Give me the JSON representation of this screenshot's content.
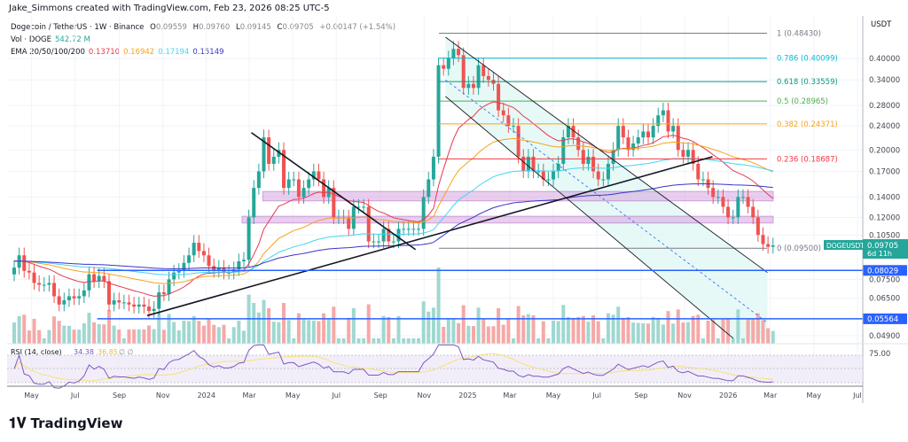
{
  "credit": "Jake_Simmons created with TradingView.com, Feb 23, 2026 08:25 UTC-5",
  "legend": {
    "symbol": "Dogecoin / TetherUS · 1W · Binance",
    "o": "O",
    "ov": "0.09559",
    "h": "H",
    "hv": "0.09760",
    "l": "L",
    "lv": "0.09145",
    "c": "C",
    "cv": "0.09705",
    "chg": "+0.00147 (+1.54%)",
    "vol_label": "Vol · DOGE",
    "vol_value": "542.72 M",
    "ema_label": "EMA 20/50/100/200",
    "ema_values": [
      "0.13710",
      "0.16942",
      "0.17194",
      "0.15149"
    ]
  },
  "ema_colors": [
    "#e53950",
    "#f7a21b",
    "#45d5f0",
    "#3a34c8"
  ],
  "axis": {
    "unit": "USDT",
    "price_ticks": [
      "0.40000",
      "0.34000",
      "0.28000",
      "0.24000",
      "0.20000",
      "0.17000",
      "0.14000",
      "0.12000",
      "0.10500",
      "0.07500",
      "0.06500",
      "0.04900"
    ],
    "time_ticks": [
      [
        "May",
        "2023-05-01"
      ],
      [
        "Jul",
        "2023-07-01"
      ],
      [
        "Sep",
        "2023-09-01"
      ],
      [
        "Nov",
        "2023-11-01"
      ],
      [
        "2024",
        "2024-01-01"
      ],
      [
        "Mar",
        "2024-03-01"
      ],
      [
        "May",
        "2024-05-01"
      ],
      [
        "Jul",
        "2024-07-01"
      ],
      [
        "Sep",
        "2024-09-01"
      ],
      [
        "Nov",
        "2024-11-01"
      ],
      [
        "2025",
        "2025-01-01"
      ],
      [
        "Mar",
        "2025-03-01"
      ],
      [
        "May",
        "2025-05-01"
      ],
      [
        "Jul",
        "2025-07-01"
      ],
      [
        "Sep",
        "2025-09-01"
      ],
      [
        "Nov",
        "2025-11-01"
      ],
      [
        "2026",
        "2026-01-01"
      ],
      [
        "Mar",
        "2026-03-01"
      ],
      [
        "May",
        "2026-05-01"
      ],
      [
        "Jul",
        "2026-07-01"
      ]
    ],
    "rsi_tick": "75.00"
  },
  "last_price": {
    "symbol": "DOGEUSDT",
    "price": "0.09705",
    "countdown": "6d 11h",
    "color": "#26a69a"
  },
  "h_lines": [
    {
      "price": 0.08029,
      "label": "0.08029"
    },
    {
      "price": 0.05564,
      "label": "0.05564"
    }
  ],
  "fib": [
    {
      "level": "1",
      "price": 0.4843,
      "text": "1 (0.48430)",
      "color": "#787b86"
    },
    {
      "level": "0.786",
      "price": 0.40099,
      "text": "0.786 (0.40099)",
      "color": "#00bcd4"
    },
    {
      "level": "0.618",
      "price": 0.33559,
      "text": "0.618 (0.33559)",
      "color": "#089981"
    },
    {
      "level": "0.5",
      "price": 0.28965,
      "text": "0.5 (0.28965)",
      "color": "#4caf50"
    },
    {
      "level": "0.382",
      "price": 0.24371,
      "text": "0.382 (0.24371)",
      "color": "#f7a21b"
    },
    {
      "level": "0.236",
      "price": 0.18687,
      "text": "0.236 (0.18687)",
      "color": "#f23645"
    },
    {
      "level": "0",
      "price": 0.095,
      "text": "0 (0.09500)",
      "color": "#787b86"
    }
  ],
  "zones": [
    {
      "from": "2024-03-20",
      "to": "2026-03-05",
      "top": 0.146,
      "bottom": 0.136
    },
    {
      "from": "2024-02-20",
      "to": "2026-03-05",
      "top": 0.121,
      "bottom": 0.115
    }
  ],
  "rsi": {
    "label": "RSI (14, close)",
    "value": "34.38",
    "ma": "36.85",
    "extra": "∅ ∅"
  },
  "chart_data": {
    "type": "candlestick",
    "scale": "log",
    "start_week": "2023-04-03",
    "interval": "1W",
    "closes": [
      0.082,
      0.09,
      0.08,
      0.079,
      0.073,
      0.072,
      0.072,
      0.073,
      0.066,
      0.062,
      0.064,
      0.066,
      0.065,
      0.066,
      0.069,
      0.078,
      0.074,
      0.077,
      0.074,
      0.062,
      0.064,
      0.063,
      0.063,
      0.062,
      0.061,
      0.062,
      0.061,
      0.059,
      0.06,
      0.068,
      0.067,
      0.075,
      0.079,
      0.08,
      0.085,
      0.09,
      0.099,
      0.093,
      0.09,
      0.083,
      0.08,
      0.082,
      0.079,
      0.079,
      0.081,
      0.086,
      0.087,
      0.12,
      0.15,
      0.17,
      0.22,
      0.18,
      0.19,
      0.2,
      0.15,
      0.16,
      0.16,
      0.14,
      0.15,
      0.16,
      0.17,
      0.16,
      0.14,
      0.15,
      0.12,
      0.12,
      0.12,
      0.11,
      0.13,
      0.13,
      0.13,
      0.1,
      0.1,
      0.1,
      0.11,
      0.1,
      0.1,
      0.11,
      0.11,
      0.11,
      0.11,
      0.11,
      0.14,
      0.16,
      0.19,
      0.38,
      0.37,
      0.4,
      0.43,
      0.41,
      0.32,
      0.33,
      0.32,
      0.38,
      0.35,
      0.34,
      0.33,
      0.27,
      0.26,
      0.24,
      0.24,
      0.19,
      0.17,
      0.19,
      0.17,
      0.17,
      0.16,
      0.16,
      0.17,
      0.18,
      0.22,
      0.24,
      0.22,
      0.2,
      0.18,
      0.19,
      0.17,
      0.16,
      0.16,
      0.18,
      0.2,
      0.24,
      0.22,
      0.2,
      0.21,
      0.22,
      0.23,
      0.22,
      0.24,
      0.26,
      0.27,
      0.23,
      0.24,
      0.2,
      0.19,
      0.2,
      0.18,
      0.16,
      0.16,
      0.15,
      0.14,
      0.14,
      0.13,
      0.12,
      0.12,
      0.14,
      0.14,
      0.13,
      0.12,
      0.105,
      0.098,
      0.096,
      0.09705
    ],
    "trendlines": [
      {
        "from": [
          "2024-03-04",
          0.228
        ],
        "to": [
          "2024-10-20",
          0.094
        ],
        "color": "#131722"
      },
      {
        "from": [
          "2023-10-10",
          0.057
        ],
        "to": [
          "2025-12-10",
          0.19
        ],
        "color": "#131722"
      },
      {
        "from": [
          "2024-12-01",
          0.47
        ],
        "to": [
          "2026-02-25",
          0.079
        ],
        "color": "#131722"
      },
      {
        "from": [
          "2024-12-01",
          0.3
        ],
        "to": [
          "2026-01-08",
          0.048
        ],
        "color": "#131722"
      },
      {
        "from": [
          "2024-12-01",
          0.34
        ],
        "to": [
          "2026-02-25",
          0.054
        ],
        "color": "#2962ff",
        "dashed": true
      }
    ]
  }
}
